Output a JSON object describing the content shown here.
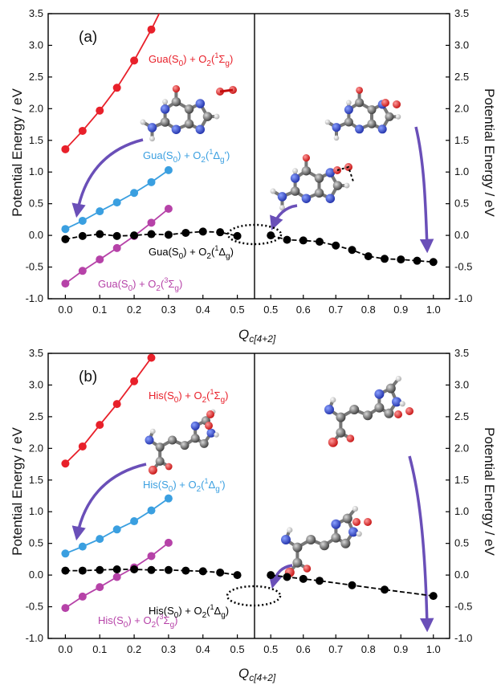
{
  "figure": {
    "ylabel_left": "Potential Energy / eV",
    "ylabel_right": "Potential Energy / eV",
    "xlabel_main": "Q",
    "xlabel_sub": "c[4+2]"
  },
  "colors": {
    "red": "#e8202a",
    "blue": "#3a9fe0",
    "magenta": "#b642a8",
    "black": "#000000",
    "arrow": "#6a4fb8"
  },
  "chart_data": [
    {
      "type": "line",
      "panel_label": "(a)",
      "ylim": [
        -1.0,
        3.5
      ],
      "left_xlim": [
        -0.05,
        0.55
      ],
      "right_xlim": [
        0.45,
        1.05
      ],
      "xticks_left": [
        "0.0",
        "0.1",
        "0.2",
        "0.3",
        "0.4",
        "0.5"
      ],
      "xticks_right": [
        "0.5",
        "0.6",
        "0.7",
        "0.8",
        "0.9",
        "1.0"
      ],
      "yticks": [
        "-1.0",
        "-0.5",
        "0.0",
        "0.5",
        "1.0",
        "1.5",
        "2.0",
        "2.5",
        "3.0",
        "3.5"
      ],
      "series": [
        {
          "side": "left",
          "color": "red",
          "label": {
            "prefix": "Gua(S",
            "sub1": "0",
            "mid": ") + O",
            "sub2": "2",
            "open": "(",
            "sup": "1",
            "term": "Σ",
            "sub3": "g",
            "close": ")"
          },
          "x": [
            0.0,
            0.05,
            0.1,
            0.15,
            0.2,
            0.25,
            0.3
          ],
          "y": [
            1.36,
            1.65,
            1.97,
            2.33,
            2.76,
            3.25,
            3.8
          ]
        },
        {
          "side": "left",
          "color": "blue",
          "label": {
            "prefix": "Gua(S",
            "sub1": "0",
            "mid": ") + O",
            "sub2": "2",
            "open": "(",
            "sup": "1",
            "term": "Δ",
            "sub3": "g",
            "close": "')"
          },
          "x": [
            0.0,
            0.05,
            0.1,
            0.15,
            0.2,
            0.25,
            0.3
          ],
          "y": [
            0.1,
            0.23,
            0.38,
            0.52,
            0.67,
            0.84,
            1.03
          ]
        },
        {
          "side": "left",
          "color": "magenta",
          "label": {
            "prefix": "Gua(S",
            "sub1": "0",
            "mid": ") + O",
            "sub2": "2",
            "open": "(",
            "sup": "3",
            "term": "Σ",
            "sub3": "g",
            "close": ")"
          },
          "x": [
            0.0,
            0.05,
            0.1,
            0.15,
            0.2,
            0.25,
            0.3
          ],
          "y": [
            -0.76,
            -0.56,
            -0.38,
            -0.2,
            -0.01,
            0.2,
            0.42
          ]
        },
        {
          "side": "left",
          "color": "black",
          "label": {
            "prefix": "Gua(S",
            "sub1": "0",
            "mid": ") + O",
            "sub2": "2",
            "open": "(",
            "sup": "1",
            "term": "Δ",
            "sub3": "g",
            "close": ")"
          },
          "x": [
            0.0,
            0.05,
            0.1,
            0.15,
            0.2,
            0.25,
            0.3,
            0.35,
            0.4,
            0.45,
            0.5
          ],
          "y": [
            -0.06,
            -0.01,
            0.02,
            -0.01,
            0.0,
            0.02,
            0.01,
            0.04,
            0.06,
            0.05,
            -0.01
          ]
        },
        {
          "side": "right",
          "color": "black",
          "x": [
            0.5,
            0.55,
            0.6,
            0.65,
            0.7,
            0.75,
            0.8,
            0.85,
            0.9,
            0.95,
            1.0
          ],
          "y": [
            0.0,
            -0.07,
            -0.08,
            -0.1,
            -0.16,
            -0.23,
            -0.33,
            -0.37,
            -0.38,
            -0.4,
            -0.42
          ]
        }
      ]
    },
    {
      "type": "line",
      "panel_label": "(b)",
      "ylim": [
        -1.0,
        3.5
      ],
      "left_xlim": [
        -0.05,
        0.55
      ],
      "right_xlim": [
        0.45,
        1.05
      ],
      "xticks_left": [
        "0.0",
        "0.1",
        "0.2",
        "0.3",
        "0.4",
        "0.5"
      ],
      "xticks_right": [
        "0.5",
        "0.6",
        "0.7",
        "0.8",
        "0.9",
        "1.0"
      ],
      "yticks": [
        "-1.0",
        "-0.5",
        "0.0",
        "0.5",
        "1.0",
        "1.5",
        "2.0",
        "2.5",
        "3.0",
        "3.5"
      ],
      "series": [
        {
          "side": "left",
          "color": "red",
          "label": {
            "prefix": "His(S",
            "sub1": "0",
            "mid": ") + O",
            "sub2": "2",
            "open": "(",
            "sup": "1",
            "term": "Σ",
            "sub3": "g",
            "close": ")"
          },
          "x": [
            0.0,
            0.05,
            0.1,
            0.15,
            0.2,
            0.25
          ],
          "y": [
            1.76,
            2.03,
            2.37,
            2.7,
            3.06,
            3.43
          ]
        },
        {
          "side": "left",
          "color": "blue",
          "label": {
            "prefix": "His(S",
            "sub1": "0",
            "mid": ") + O",
            "sub2": "2",
            "open": "(",
            "sup": "1",
            "term": "Δ",
            "sub3": "g",
            "close": "')"
          },
          "x": [
            0.0,
            0.05,
            0.1,
            0.15,
            0.2,
            0.25,
            0.3
          ],
          "y": [
            0.34,
            0.45,
            0.57,
            0.72,
            0.85,
            1.02,
            1.21
          ]
        },
        {
          "side": "left",
          "color": "magenta",
          "label": {
            "prefix": "His(S",
            "sub1": "0",
            "mid": ") + O",
            "sub2": "2",
            "open": "(",
            "sup": "3",
            "term": "Σ",
            "sub3": "g",
            "close": ")"
          },
          "x": [
            0.0,
            0.05,
            0.1,
            0.15,
            0.2,
            0.25,
            0.3
          ],
          "y": [
            -0.52,
            -0.34,
            -0.19,
            -0.03,
            0.12,
            0.3,
            0.51
          ]
        },
        {
          "side": "left",
          "color": "black",
          "label": {
            "prefix": "His(S",
            "sub1": "0",
            "mid": ") + O",
            "sub2": "2",
            "open": "(",
            "sup": "1",
            "term": "Δ",
            "sub3": "g",
            "close": ")"
          },
          "x": [
            0.0,
            0.05,
            0.1,
            0.15,
            0.2,
            0.25,
            0.3,
            0.35,
            0.4,
            0.45,
            0.5
          ],
          "y": [
            0.07,
            0.07,
            0.08,
            0.09,
            0.09,
            0.08,
            0.08,
            0.07,
            0.06,
            0.04,
            0.0
          ]
        },
        {
          "side": "right",
          "color": "black",
          "x": [
            0.5,
            0.55,
            0.6,
            0.65,
            0.75,
            0.85,
            1.0
          ],
          "y": [
            0.0,
            -0.03,
            -0.06,
            -0.09,
            -0.16,
            -0.23,
            -0.33
          ]
        }
      ]
    }
  ]
}
